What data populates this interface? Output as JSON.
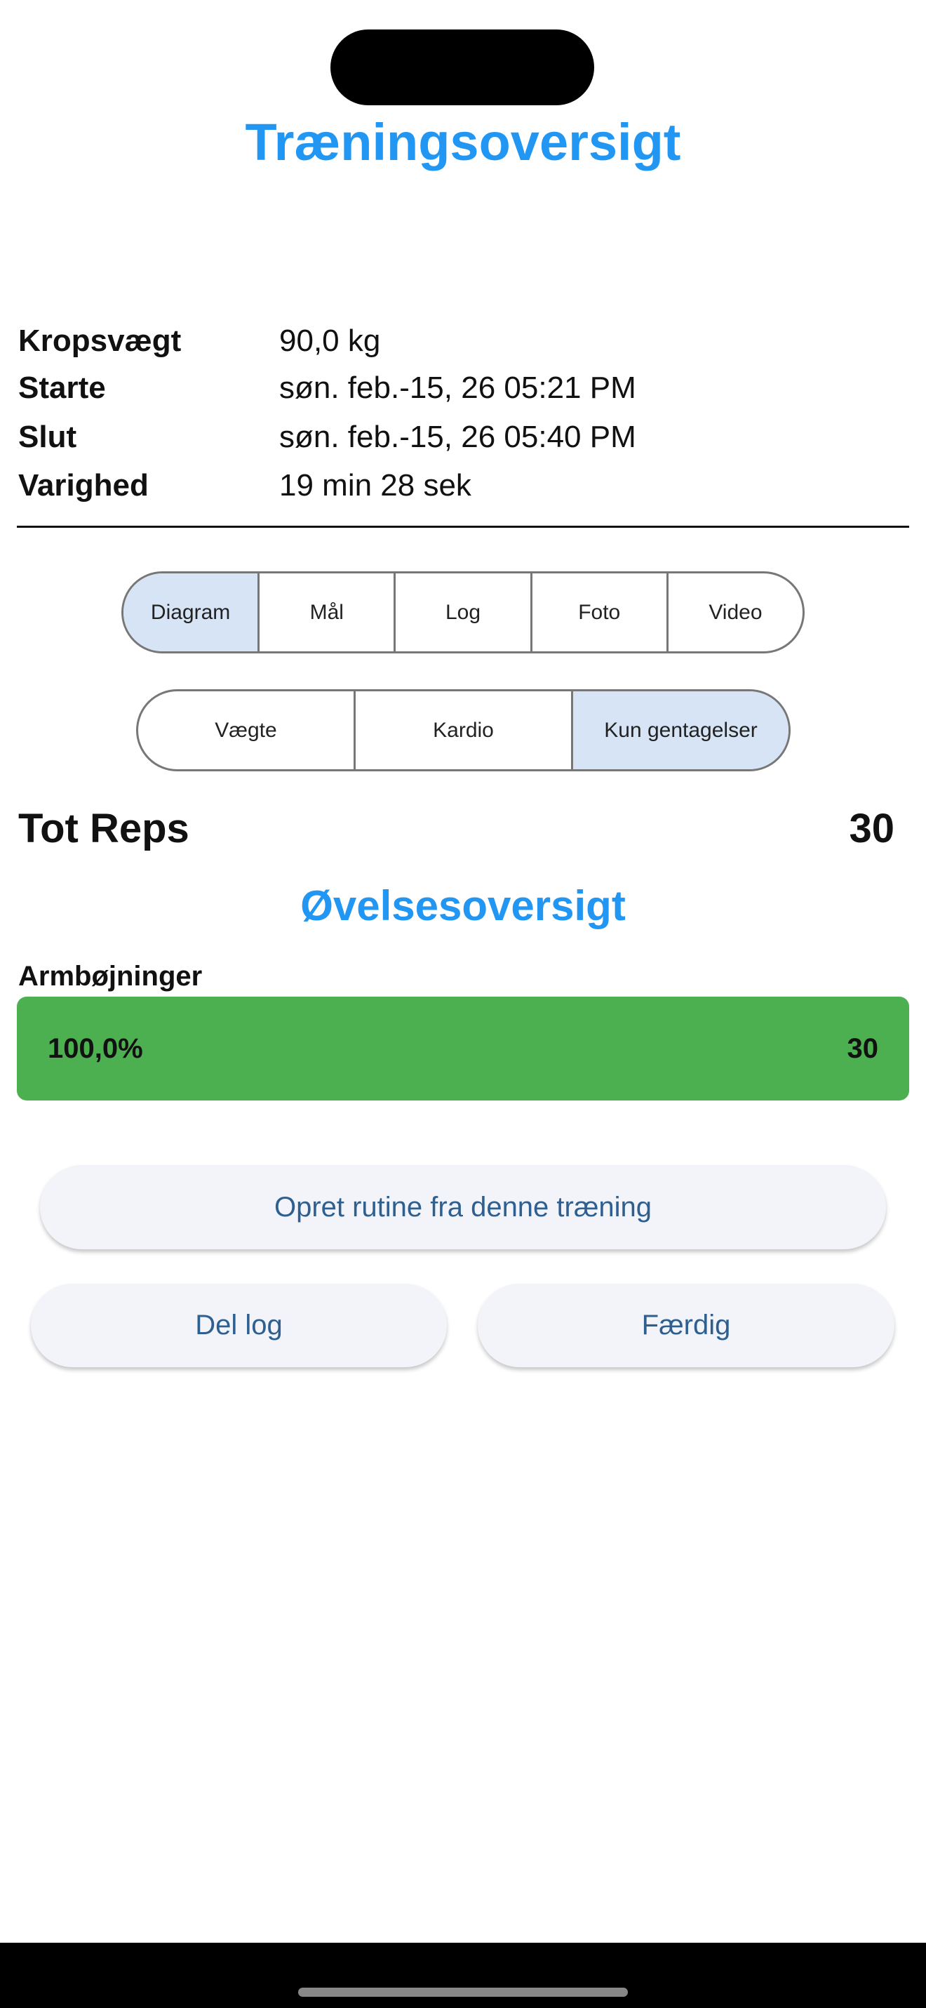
{
  "header": {
    "title": "Træningsoversigt"
  },
  "info": [
    {
      "label": "Kropsvægt",
      "value": "90,0 kg"
    },
    {
      "label": "Starte",
      "value": "søn. feb.-15, 26 05:21 PM"
    },
    {
      "label": "Slut",
      "value": "søn. feb.-15, 26 05:40 PM"
    },
    {
      "label": "Varighed",
      "value": "19 min 28 sek"
    }
  ],
  "view_tabs": {
    "selected": "Diagram",
    "items": [
      "Diagram",
      "Mål",
      "Log",
      "Foto",
      "Video"
    ]
  },
  "type_tabs": {
    "selected": "Kun gentagelser",
    "items": [
      "Vægte",
      "Kardio",
      "Kun gentagelser"
    ]
  },
  "totals": {
    "label": "Tot Reps",
    "value": "30"
  },
  "exercise_overview": {
    "title": "Øvelsesoversigt",
    "exercises": [
      {
        "name": "Armbøjninger",
        "percent_label": "100,0%",
        "percent": 100,
        "count": "30",
        "bar_color": "#4caf50"
      }
    ]
  },
  "actions": {
    "create_routine": "Opret rutine fra denne træning",
    "share_log": "Del log",
    "done": "Færdig"
  },
  "colors": {
    "accent": "#2196f3",
    "selected_segment": "#d6e4f5",
    "button_text": "#2e5f8f"
  }
}
